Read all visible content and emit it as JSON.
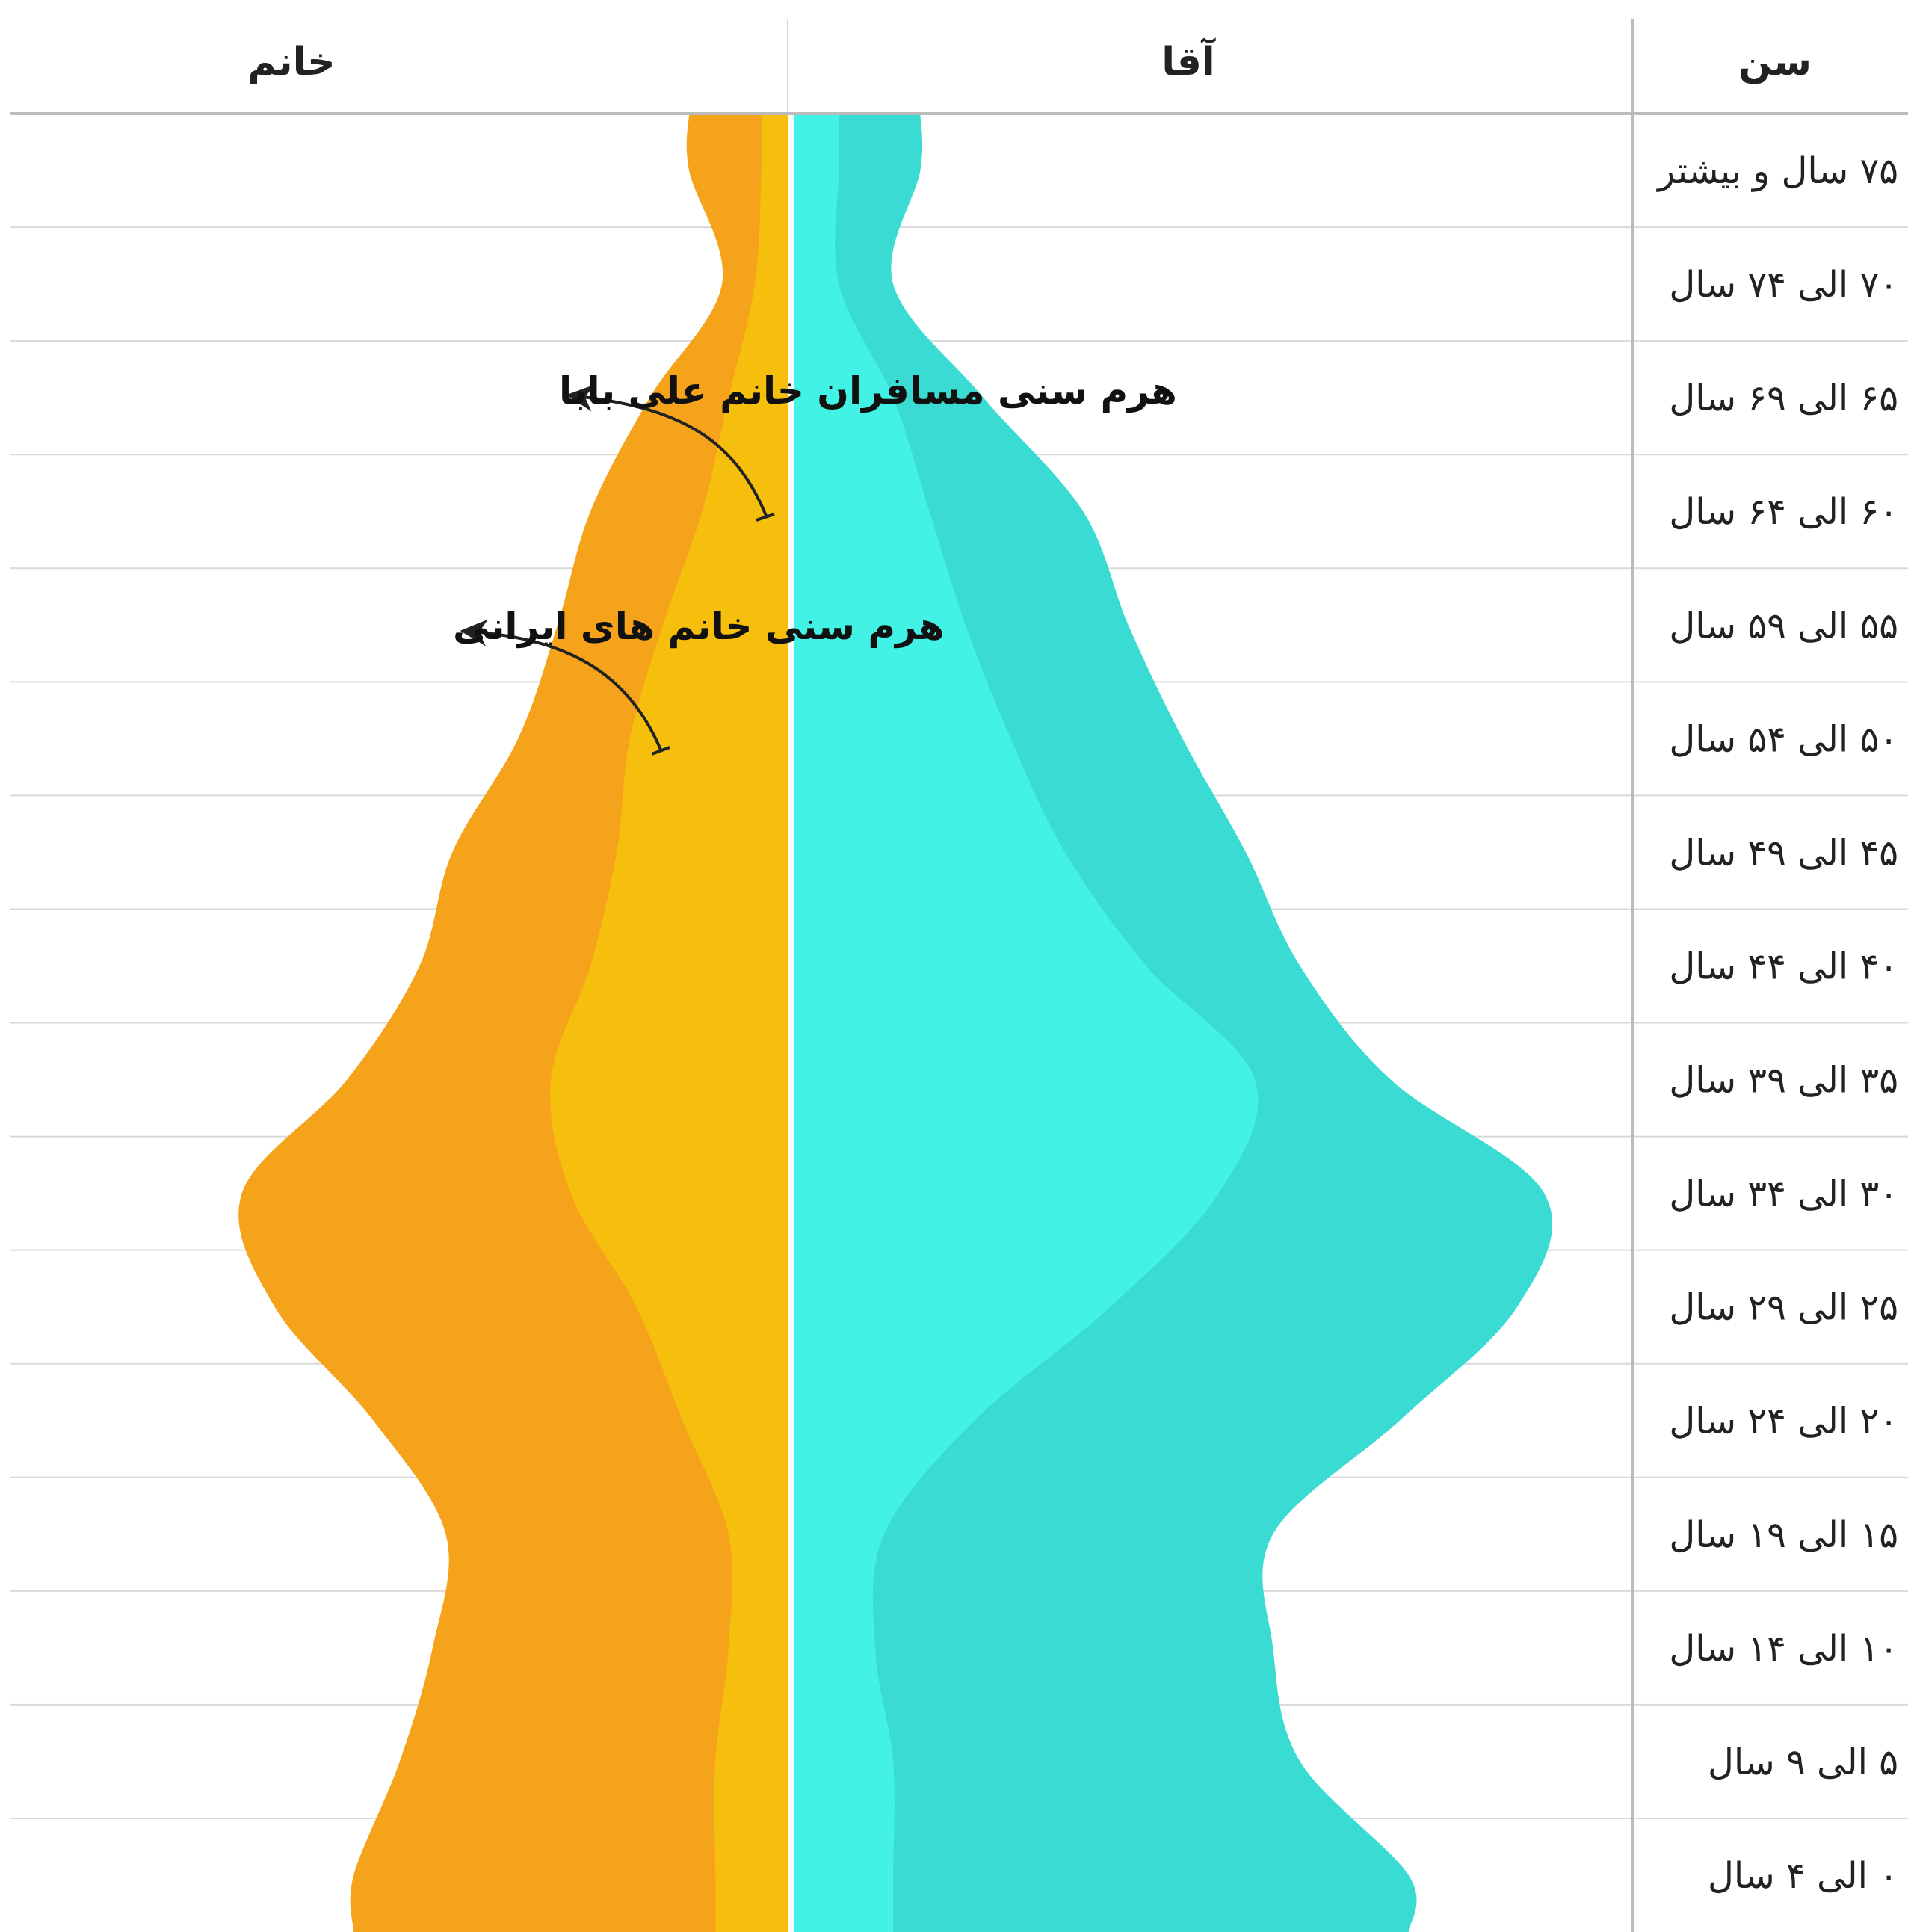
{
  "headers": {
    "female": "خانم",
    "male": "آقا",
    "age": "سن"
  },
  "annotations": {
    "alibaba_female": "هرم سنی مسافران خانم علی بابا",
    "iran_female": "هرم سنی خانم های ایرانی"
  },
  "colors": {
    "iran_female": "#F6A31C",
    "alibaba_female": "#F6BF0E",
    "iran_male": "#3ADBD2",
    "alibaba_male": "#42F2E4",
    "grid": "#D9D9D9",
    "divider": "#BBBBBB"
  },
  "chart_data": {
    "type": "area",
    "orientation": "population-pyramid",
    "categories": [
      "۷۵ سال و بیشتر",
      "۷۰ الی ۷۴ سال",
      "۶۵ الی ۶۹ سال",
      "۶۰ الی ۶۴ سال",
      "۵۵ الی ۵۹ سال",
      "۵۰ الی ۵۴ سال",
      "۴۵ الی ۴۹ سال",
      "۴۰ الی ۴۴ سال",
      "۳۵ الی ۳۹ سال",
      "۳۰ الی ۳۴ سال",
      "۲۵ الی ۲۹ سال",
      "۲۰ الی ۲۴ سال",
      "۱۵ الی ۱۹ سال",
      "۱۰ الی ۱۴ سال",
      "۵ الی ۹ سال",
      "۰ الی ۴ سال"
    ],
    "series": [
      {
        "name": "هرم سنی خانم های ایرانی",
        "side": "female",
        "values": [
          0.15,
          0.1,
          0.21,
          0.3,
          0.35,
          0.41,
          0.51,
          0.56,
          0.67,
          0.83,
          0.78,
          0.63,
          0.52,
          0.54,
          0.59,
          0.66
        ]
      },
      {
        "name": "هرم سنی مسافران خانم علی بابا",
        "side": "female",
        "values": [
          0.04,
          0.05,
          0.09,
          0.13,
          0.19,
          0.24,
          0.26,
          0.3,
          0.36,
          0.33,
          0.23,
          0.16,
          0.09,
          0.09,
          0.11,
          0.11
        ]
      },
      {
        "side": "male",
        "values": [
          0.14,
          0.11,
          0.21,
          0.32,
          0.37,
          0.43,
          0.5,
          0.56,
          0.66,
          0.83,
          0.8,
          0.67,
          0.53,
          0.53,
          0.56,
          0.68
        ]
      },
      {
        "side": "male",
        "values": [
          0.05,
          0.05,
          0.11,
          0.15,
          0.19,
          0.24,
          0.3,
          0.39,
          0.51,
          0.47,
          0.35,
          0.2,
          0.1,
          0.09,
          0.11,
          0.11
        ]
      }
    ],
    "xlim": [
      0,
      1
    ],
    "grid": true
  }
}
